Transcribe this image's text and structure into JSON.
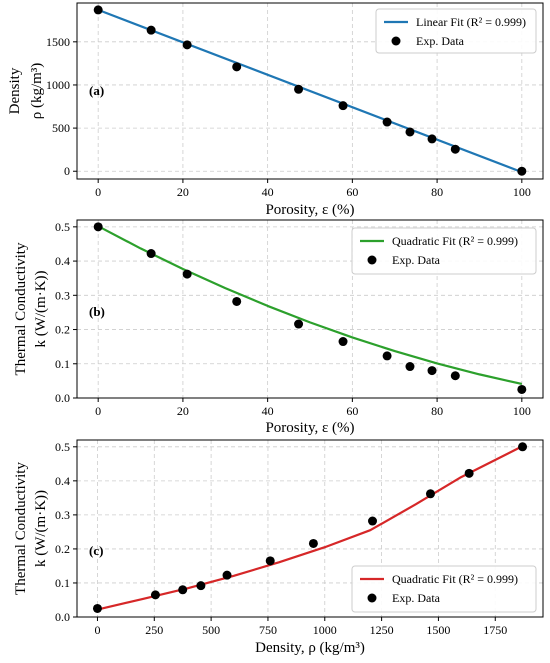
{
  "chart_data": [
    {
      "type": "scatter",
      "panel_label": "(a)",
      "xlabel": "Porosity, ε (%)",
      "ylabel_lines": [
        "Density",
        "ρ (kg/m³)"
      ],
      "xlim": [
        -5,
        105
      ],
      "ylim": [
        -90,
        1950
      ],
      "xticks": [
        0,
        20,
        40,
        60,
        80,
        100
      ],
      "yticks": [
        0,
        500,
        1000,
        1500
      ],
      "grid": true,
      "legend_position": "top-right",
      "series": [
        {
          "name": "Linear Fit (R² = 0.999)",
          "kind": "line",
          "color": "#1f77b4",
          "x": [
            0,
            100
          ],
          "y": [
            1870,
            -10
          ]
        },
        {
          "name": "Exp. Data",
          "kind": "scatter",
          "color": "#000000",
          "x": [
            0,
            12.5,
            21,
            32.7,
            47.3,
            57.8,
            68.2,
            73.6,
            78.8,
            84.3,
            100
          ],
          "y": [
            1870,
            1635,
            1465,
            1210,
            950,
            760,
            570,
            455,
            375,
            255,
            0
          ]
        }
      ]
    },
    {
      "type": "scatter",
      "panel_label": "(b)",
      "xlabel": "Porosity, ε (%)",
      "ylabel_lines": [
        "Thermal Conductivity",
        "k (W/(m·K))"
      ],
      "xlim": [
        -5,
        105
      ],
      "ylim": [
        0,
        0.52
      ],
      "xticks": [
        0,
        20,
        40,
        60,
        80,
        100
      ],
      "yticks": [
        0.0,
        0.1,
        0.2,
        0.3,
        0.4,
        0.5
      ],
      "ytick_decimals": 1,
      "grid": true,
      "legend_position": "top-right",
      "series": [
        {
          "name": "Quadratic Fit (R² = 0.999)",
          "kind": "line",
          "color": "#2ca02c",
          "x": [
            0,
            10,
            20,
            30,
            40,
            50,
            60,
            70,
            80,
            90,
            100
          ],
          "y": [
            0.502,
            0.437,
            0.377,
            0.321,
            0.269,
            0.221,
            0.177,
            0.137,
            0.101,
            0.069,
            0.041
          ]
        },
        {
          "name": "Exp. Data",
          "kind": "scatter",
          "color": "#000000",
          "x": [
            0,
            12.5,
            21,
            32.7,
            47.3,
            57.8,
            68.2,
            73.6,
            78.8,
            84.3,
            100
          ],
          "y": [
            0.5,
            0.422,
            0.362,
            0.282,
            0.216,
            0.165,
            0.123,
            0.092,
            0.08,
            0.065,
            0.025
          ]
        }
      ]
    },
    {
      "type": "scatter",
      "panel_label": "(c)",
      "xlabel": "Density, ρ (kg/m³)",
      "ylabel_lines": [
        "Thermal Conductivity",
        "k (W/(m·K))"
      ],
      "xlim": [
        -90,
        1960
      ],
      "ylim": [
        0,
        0.52
      ],
      "xticks": [
        0,
        250,
        500,
        750,
        1000,
        1250,
        1500,
        1750
      ],
      "yticks": [
        0.0,
        0.1,
        0.2,
        0.3,
        0.4,
        0.5
      ],
      "ytick_decimals": 1,
      "grid": true,
      "legend_position": "bottom-right",
      "series": [
        {
          "name": "Quadratic Fit (R² = 0.999)",
          "kind": "line",
          "color": "#d62728",
          "x": [
            0,
            200,
            400,
            600,
            800,
            1000,
            1200,
            1400,
            1600,
            1870
          ],
          "y": [
            0.022,
            0.053,
            0.085,
            0.121,
            0.161,
            0.205,
            0.255,
            0.331,
            0.411,
            0.502
          ]
        },
        {
          "name": "Exp. Data",
          "kind": "scatter",
          "color": "#000000",
          "x": [
            0,
            255,
            375,
            455,
            570,
            760,
            950,
            1210,
            1465,
            1635,
            1870
          ],
          "y": [
            0.025,
            0.065,
            0.08,
            0.092,
            0.123,
            0.165,
            0.216,
            0.282,
            0.362,
            0.422,
            0.5
          ]
        }
      ]
    }
  ]
}
